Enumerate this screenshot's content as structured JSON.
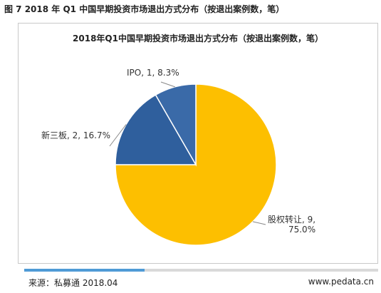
{
  "figure_title": "图 7 2018 年 Q1 中国早期投资市场退出方式分布（按退出案例数，笔）",
  "chart_data": {
    "type": "pie",
    "title": "2018年Q1中国早期投资市场退出方式分布（按退出案例数，笔）",
    "slices": [
      {
        "name": "股权转让",
        "value": 9,
        "percent": "75.0%",
        "label_line1": "股权转让, 9,",
        "label_line2": "75.0%",
        "color": "#fdbf00"
      },
      {
        "name": "新三板",
        "value": 2,
        "percent": "16.7%",
        "label_line1": "新三板, 2, 16.7%",
        "label_line2": "",
        "color": "#2f5f9d"
      },
      {
        "name": "IPO",
        "value": 1,
        "percent": "8.3%",
        "label_line1": "IPO, 1, 8.3%",
        "label_line2": "",
        "color": "#3a6aa8"
      }
    ],
    "start_angle_deg": 0,
    "direction": "clockwise",
    "slice_border_color": "#ffffff",
    "leader_line_color": "#888888"
  },
  "footer": {
    "source": "来源：私募通 2018.04",
    "website": "www.pedata.cn",
    "progress_fraction": 0.34,
    "progress_color": "#4f9bd6"
  }
}
